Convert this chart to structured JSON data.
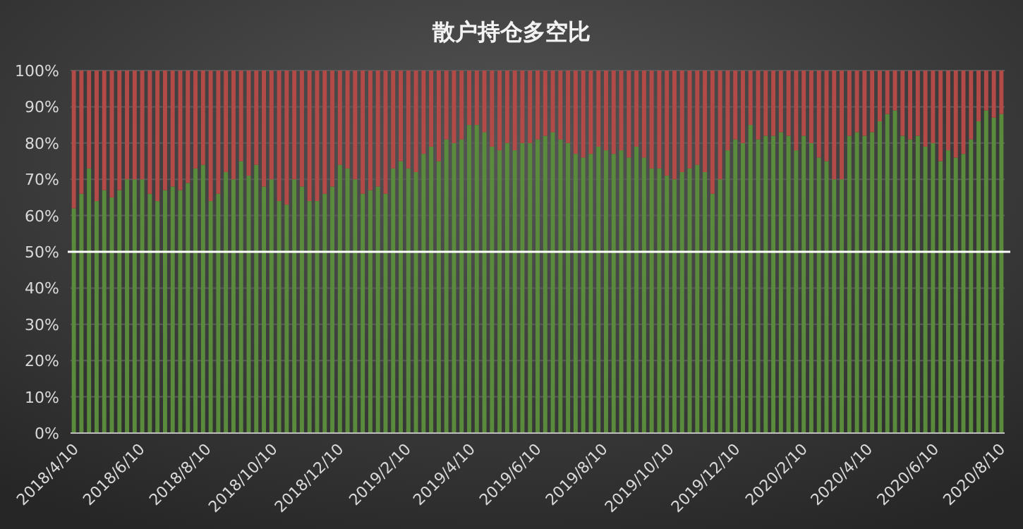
{
  "chart_data": {
    "type": "bar",
    "title": "散户持仓多空比",
    "stacked": true,
    "grid": "y",
    "x": [
      "2018-04-10",
      "2018-04-17",
      "2018-04-24",
      "2018-05-01",
      "2018-05-08",
      "2018-05-15",
      "2018-05-22",
      "2018-05-29",
      "2018-06-05",
      "2018-06-12",
      "2018-06-19",
      "2018-06-26",
      "2018-07-03",
      "2018-07-10",
      "2018-07-17",
      "2018-07-24",
      "2018-07-31",
      "2018-08-07",
      "2018-08-14",
      "2018-08-21",
      "2018-08-28",
      "2018-09-04",
      "2018-09-11",
      "2018-09-18",
      "2018-09-25",
      "2018-10-02",
      "2018-10-09",
      "2018-10-16",
      "2018-10-23",
      "2018-10-30",
      "2018-11-06",
      "2018-11-13",
      "2018-11-20",
      "2018-11-27",
      "2018-12-04",
      "2018-12-11",
      "2018-12-18",
      "2018-12-25",
      "2019-01-01",
      "2019-01-08",
      "2019-01-15",
      "2019-01-22",
      "2019-01-29",
      "2019-02-05",
      "2019-02-12",
      "2019-02-19",
      "2019-02-26",
      "2019-03-05",
      "2019-03-12",
      "2019-03-19",
      "2019-03-26",
      "2019-04-02",
      "2019-04-09",
      "2019-04-16",
      "2019-04-23",
      "2019-04-30",
      "2019-05-07",
      "2019-05-14",
      "2019-05-21",
      "2019-05-28",
      "2019-06-04",
      "2019-06-11",
      "2019-06-18",
      "2019-06-25",
      "2019-07-02",
      "2019-07-09",
      "2019-07-16",
      "2019-07-23",
      "2019-07-30",
      "2019-08-06",
      "2019-08-13",
      "2019-08-20",
      "2019-08-27",
      "2019-09-03",
      "2019-09-10",
      "2019-09-17",
      "2019-09-24",
      "2019-10-01",
      "2019-10-08",
      "2019-10-15",
      "2019-10-22",
      "2019-10-29",
      "2019-11-05",
      "2019-11-12",
      "2019-11-19",
      "2019-11-26",
      "2019-12-03",
      "2019-12-10",
      "2019-12-17",
      "2019-12-24",
      "2019-12-31",
      "2020-01-07",
      "2020-01-14",
      "2020-01-21",
      "2020-01-28",
      "2020-02-04",
      "2020-02-11",
      "2020-02-18",
      "2020-02-25",
      "2020-03-03",
      "2020-03-10",
      "2020-03-17",
      "2020-03-24",
      "2020-03-31",
      "2020-04-07",
      "2020-04-14",
      "2020-04-21",
      "2020-04-28",
      "2020-05-05",
      "2020-05-12",
      "2020-05-19",
      "2020-05-26",
      "2020-06-02",
      "2020-06-09",
      "2020-06-16",
      "2020-06-23",
      "2020-06-30",
      "2020-07-07",
      "2020-07-14",
      "2020-07-21",
      "2020-07-28",
      "2020-08-04",
      "2020-08-11"
    ],
    "series": [
      {
        "color": "#5a8a3c",
        "values": [
          62,
          66,
          73,
          64,
          67,
          65,
          67,
          70,
          70,
          70,
          66,
          64,
          67,
          68,
          67,
          69,
          73,
          74,
          64,
          66,
          72,
          70,
          75,
          71,
          74,
          68,
          70,
          64,
          63,
          70,
          68,
          64,
          64,
          66,
          68,
          74,
          73,
          70,
          66,
          67,
          68,
          66,
          73,
          75,
          73,
          72,
          77,
          79,
          75,
          81,
          80,
          81,
          85,
          85,
          83,
          79,
          78,
          80,
          78,
          80,
          80,
          81,
          82,
          83,
          81,
          80,
          77,
          76,
          77,
          79,
          78,
          77,
          78,
          76,
          79,
          76,
          73,
          73,
          71,
          70,
          72,
          73,
          74,
          72,
          66,
          70,
          78,
          81,
          80,
          85,
          81,
          82,
          82,
          83,
          82,
          78,
          82,
          80,
          76,
          75,
          70,
          70,
          82,
          83,
          82,
          83,
          86,
          88,
          89,
          82,
          81,
          82,
          79,
          80,
          75,
          78,
          76,
          77,
          81,
          86,
          89,
          87,
          88
        ]
      },
      {
        "color": "#b24a48",
        "values": [
          38,
          34,
          27,
          36,
          33,
          35,
          33,
          30,
          30,
          30,
          34,
          36,
          33,
          32,
          33,
          31,
          27,
          26,
          36,
          34,
          28,
          30,
          25,
          29,
          26,
          32,
          30,
          36,
          37,
          30,
          32,
          36,
          36,
          34,
          32,
          26,
          27,
          30,
          34,
          33,
          32,
          34,
          27,
          25,
          27,
          28,
          23,
          21,
          25,
          19,
          20,
          19,
          15,
          15,
          17,
          21,
          22,
          20,
          22,
          20,
          20,
          19,
          18,
          17,
          19,
          20,
          23,
          24,
          23,
          21,
          22,
          23,
          22,
          24,
          21,
          24,
          27,
          27,
          29,
          30,
          28,
          27,
          26,
          28,
          34,
          30,
          22,
          19,
          20,
          15,
          19,
          18,
          18,
          17,
          18,
          22,
          18,
          20,
          24,
          25,
          30,
          30,
          18,
          17,
          18,
          17,
          14,
          12,
          11,
          18,
          19,
          18,
          21,
          20,
          25,
          22,
          24,
          23,
          19,
          14,
          11,
          13,
          12
        ]
      }
    ],
    "xlim": [
      "2018-04-07",
      "2020-08-14"
    ],
    "xticks": [
      {
        "value": "2018-04-10",
        "label": "2018/4/10"
      },
      {
        "value": "2018-06-10",
        "label": "2018/6/10"
      },
      {
        "value": "2018-08-10",
        "label": "2018/8/10"
      },
      {
        "value": "2018-10-10",
        "label": "2018/10/10"
      },
      {
        "value": "2018-12-10",
        "label": "2018/12/10"
      },
      {
        "value": "2019-02-10",
        "label": "2019/2/10"
      },
      {
        "value": "2019-04-10",
        "label": "2019/4/10"
      },
      {
        "value": "2019-06-10",
        "label": "2019/6/10"
      },
      {
        "value": "2019-08-10",
        "label": "2019/8/10"
      },
      {
        "value": "2019-10-10",
        "label": "2019/10/10"
      },
      {
        "value": "2019-12-10",
        "label": "2019/12/10"
      },
      {
        "value": "2020-02-10",
        "label": "2020/2/10"
      },
      {
        "value": "2020-04-10",
        "label": "2020/4/10"
      },
      {
        "value": "2020-06-10",
        "label": "2020/6/10"
      },
      {
        "value": "2020-08-10",
        "label": "2020/8/10"
      }
    ],
    "ylim": [
      0,
      100
    ],
    "yticks": [
      {
        "value": 0,
        "label": "0%"
      },
      {
        "value": 10,
        "label": "10%"
      },
      {
        "value": 20,
        "label": "20%"
      },
      {
        "value": 30,
        "label": "30%"
      },
      {
        "value": 40,
        "label": "40%"
      },
      {
        "value": 50,
        "label": "50%"
      },
      {
        "value": 60,
        "label": "60%"
      },
      {
        "value": 70,
        "label": "70%"
      },
      {
        "value": 80,
        "label": "80%"
      },
      {
        "value": 90,
        "label": "90%"
      },
      {
        "value": 100,
        "label": "100%"
      }
    ],
    "ref_lines": [
      {
        "axis": "y",
        "value": 50,
        "color": "#ffffff"
      }
    ]
  }
}
